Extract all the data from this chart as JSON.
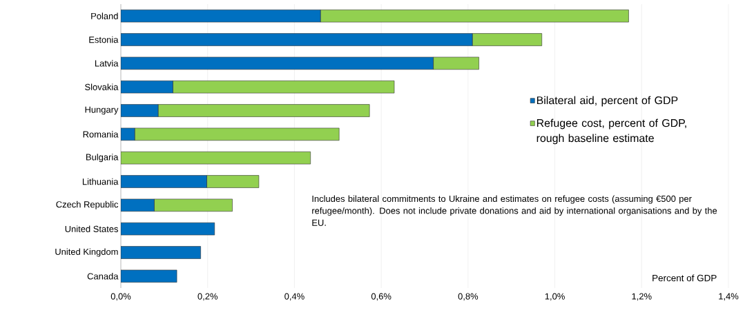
{
  "chart_data": {
    "type": "bar",
    "orientation": "horizontal",
    "stacked": true,
    "categories": [
      "Poland",
      "Estonia",
      "Latvia",
      "Slovakia",
      "Hungary",
      "Romania",
      "Bulgaria",
      "Lithuania",
      "Czech Republic",
      "United States",
      "United Kingdom",
      "Canada"
    ],
    "series": [
      {
        "name": "Bilateral aid, percent of GDP",
        "color": "#0070c0",
        "values": [
          0.46,
          0.81,
          0.72,
          0.12,
          0.086,
          0.032,
          0,
          0.198,
          0.077,
          0.216,
          0.184,
          0.129
        ]
      },
      {
        "name": "Refugee cost, percent of GDP, rough baseline estimate",
        "color": "#92d050",
        "values": [
          0.71,
          0.16,
          0.105,
          0.51,
          0.487,
          0.471,
          0.437,
          0.12,
          0.18,
          0,
          0,
          0
        ]
      }
    ],
    "xlim": [
      0,
      1.4
    ],
    "xticks": [
      {
        "value": 0,
        "label": "0,0%"
      },
      {
        "value": 0.2,
        "label": "0,2%"
      },
      {
        "value": 0.4,
        "label": "0,4%"
      },
      {
        "value": 0.6,
        "label": "0,6%"
      },
      {
        "value": 0.8,
        "label": "0,8%"
      },
      {
        "value": 1.0,
        "label": "1,0%"
      },
      {
        "value": 1.2,
        "label": "1,2%"
      },
      {
        "value": 1.4,
        "label": "1,4%"
      }
    ],
    "xlabel": "Percent of GDP",
    "grid": "x",
    "legend": "right",
    "annotations": [
      "Includes bilateral commitments to Ukraine and estimates on refugee costs (assuming €500 per refugee/month). Does not include private donations and aid by international organisations and by the EU."
    ]
  }
}
